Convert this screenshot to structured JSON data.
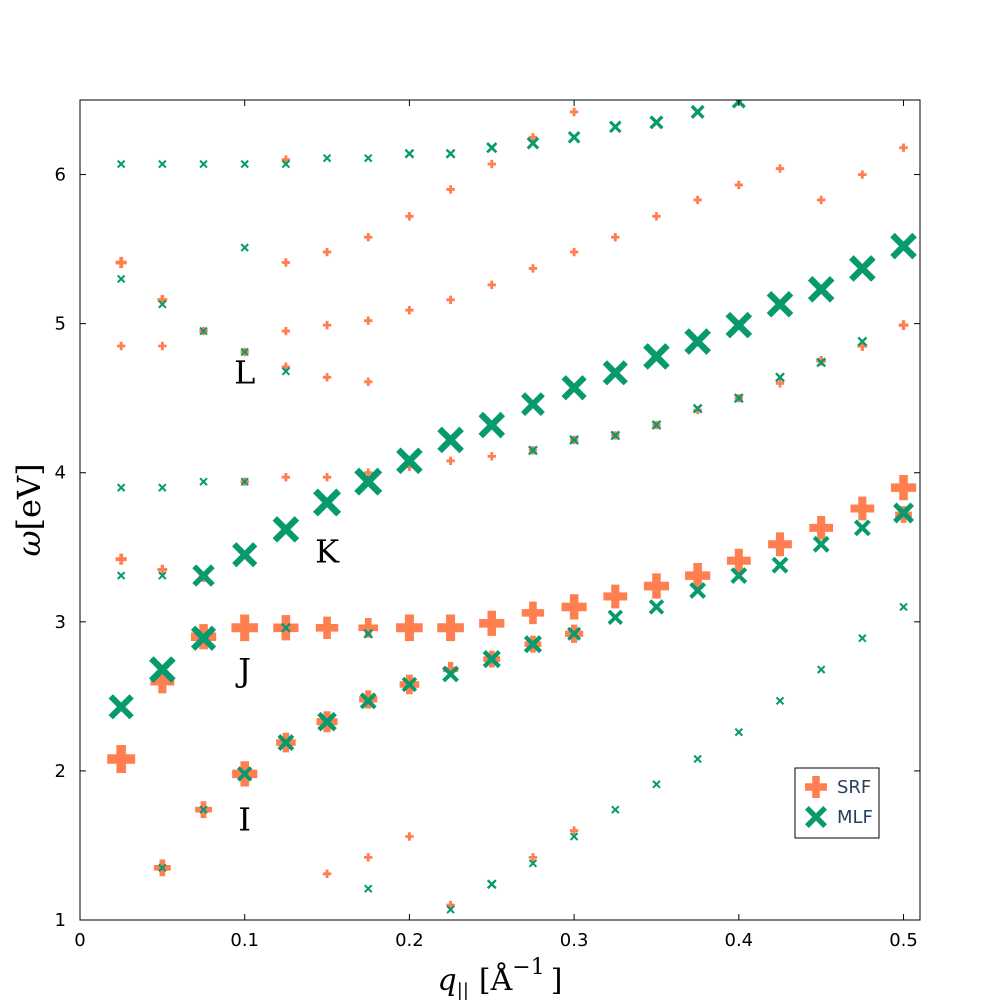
{
  "chart_data": {
    "type": "scatter",
    "title": "",
    "xlabel": "q",
    "xlabel_subscript": "||",
    "xlabel_unit": "[Å",
    "xlabel_unit_exp": "−1",
    "xlabel_unit_close": "]",
    "ylabel_symbol": "ω",
    "ylabel_unit": "[eV]",
    "xlim": [
      0,
      0.51
    ],
    "ylim": [
      1,
      6.5
    ],
    "xticks": [
      0,
      0.1,
      0.2,
      0.3,
      0.4,
      0.5
    ],
    "xtick_labels": [
      "0",
      "0.1",
      "0.2",
      "0.3",
      "0.4",
      "0.5"
    ],
    "yticks": [
      1,
      2,
      3,
      4,
      5,
      6
    ],
    "ytick_labels": [
      "1",
      "2",
      "3",
      "4",
      "5",
      "6"
    ],
    "grid": false,
    "legend_position": "bottom-right",
    "annotations": [
      {
        "text": "L",
        "x": 0.1,
        "y": 4.68
      },
      {
        "text": "K",
        "x": 0.15,
        "y": 3.48
      },
      {
        "text": "J",
        "x": 0.1,
        "y": 2.68
      },
      {
        "text": "I",
        "x": 0.1,
        "y": 1.68
      }
    ],
    "series": [
      {
        "name": "SRF",
        "marker": "cross",
        "color": "#FF7F50",
        "points": [
          {
            "x": 0.025,
            "y": 2.08,
            "s": 2.0
          },
          {
            "x": 0.05,
            "y": 2.6,
            "s": 1.7
          },
          {
            "x": 0.075,
            "y": 2.9,
            "s": 1.8
          },
          {
            "x": 0.1,
            "y": 2.96,
            "s": 1.9
          },
          {
            "x": 0.125,
            "y": 2.96,
            "s": 1.8
          },
          {
            "x": 0.15,
            "y": 2.96,
            "s": 1.6
          },
          {
            "x": 0.175,
            "y": 2.96,
            "s": 1.4
          },
          {
            "x": 0.2,
            "y": 2.96,
            "s": 1.9
          },
          {
            "x": 0.225,
            "y": 2.96,
            "s": 1.9
          },
          {
            "x": 0.25,
            "y": 2.99,
            "s": 1.8
          },
          {
            "x": 0.275,
            "y": 3.06,
            "s": 1.6
          },
          {
            "x": 0.3,
            "y": 3.1,
            "s": 1.8
          },
          {
            "x": 0.325,
            "y": 3.17,
            "s": 1.7
          },
          {
            "x": 0.35,
            "y": 3.24,
            "s": 1.8
          },
          {
            "x": 0.375,
            "y": 3.31,
            "s": 1.8
          },
          {
            "x": 0.4,
            "y": 3.41,
            "s": 1.7
          },
          {
            "x": 0.425,
            "y": 3.52,
            "s": 1.7
          },
          {
            "x": 0.45,
            "y": 3.63,
            "s": 1.7
          },
          {
            "x": 0.475,
            "y": 3.76,
            "s": 1.7
          },
          {
            "x": 0.5,
            "y": 3.9,
            "s": 1.8
          },
          {
            "x": 0.05,
            "y": 1.35,
            "s": 1.2
          },
          {
            "x": 0.075,
            "y": 1.74,
            "s": 1.2
          },
          {
            "x": 0.1,
            "y": 1.98,
            "s": 1.8
          },
          {
            "x": 0.125,
            "y": 2.19,
            "s": 1.4
          },
          {
            "x": 0.15,
            "y": 2.33,
            "s": 1.5
          },
          {
            "x": 0.175,
            "y": 2.48,
            "s": 1.3
          },
          {
            "x": 0.2,
            "y": 2.58,
            "s": 1.4
          },
          {
            "x": 0.225,
            "y": 2.68,
            "s": 1.1
          },
          {
            "x": 0.25,
            "y": 2.75,
            "s": 1.2
          },
          {
            "x": 0.275,
            "y": 2.85,
            "s": 1.2
          },
          {
            "x": 0.3,
            "y": 2.92,
            "s": 1.3
          },
          {
            "x": 0.5,
            "y": 3.72,
            "s": 1.2
          },
          {
            "x": 0.025,
            "y": 3.42,
            "s": 0.8
          },
          {
            "x": 0.05,
            "y": 3.35,
            "s": 0.7
          },
          {
            "x": 0.075,
            "y": 3.3,
            "s": 0.7
          },
          {
            "x": 0.025,
            "y": 4.85,
            "s": 0.6
          },
          {
            "x": 0.05,
            "y": 4.85,
            "s": 0.6
          },
          {
            "x": 0.075,
            "y": 4.95,
            "s": 0.6
          },
          {
            "x": 0.1,
            "y": 4.81,
            "s": 0.6
          },
          {
            "x": 0.125,
            "y": 4.71,
            "s": 0.6
          },
          {
            "x": 0.15,
            "y": 4.64,
            "s": 0.6
          },
          {
            "x": 0.175,
            "y": 4.61,
            "s": 0.6
          },
          {
            "x": 0.025,
            "y": 5.41,
            "s": 0.8
          },
          {
            "x": 0.05,
            "y": 5.16,
            "s": 0.7
          },
          {
            "x": 0.1,
            "y": 3.94,
            "s": 0.6
          },
          {
            "x": 0.125,
            "y": 3.97,
            "s": 0.6
          },
          {
            "x": 0.15,
            "y": 3.97,
            "s": 0.6
          },
          {
            "x": 0.175,
            "y": 4.0,
            "s": 0.6
          },
          {
            "x": 0.2,
            "y": 4.04,
            "s": 0.6
          },
          {
            "x": 0.225,
            "y": 4.08,
            "s": 0.6
          },
          {
            "x": 0.25,
            "y": 4.11,
            "s": 0.6
          },
          {
            "x": 0.275,
            "y": 4.15,
            "s": 0.6
          },
          {
            "x": 0.3,
            "y": 4.22,
            "s": 0.6
          },
          {
            "x": 0.325,
            "y": 4.25,
            "s": 0.6
          },
          {
            "x": 0.35,
            "y": 4.32,
            "s": 0.6
          },
          {
            "x": 0.375,
            "y": 4.42,
            "s": 0.6
          },
          {
            "x": 0.4,
            "y": 4.5,
            "s": 0.6
          },
          {
            "x": 0.425,
            "y": 4.6,
            "s": 0.6
          },
          {
            "x": 0.45,
            "y": 4.75,
            "s": 0.7
          },
          {
            "x": 0.475,
            "y": 4.85,
            "s": 0.7
          },
          {
            "x": 0.5,
            "y": 4.99,
            "s": 0.7
          },
          {
            "x": 0.125,
            "y": 4.95,
            "s": 0.6
          },
          {
            "x": 0.15,
            "y": 4.99,
            "s": 0.6
          },
          {
            "x": 0.175,
            "y": 5.02,
            "s": 0.6
          },
          {
            "x": 0.2,
            "y": 5.09,
            "s": 0.6
          },
          {
            "x": 0.225,
            "y": 5.16,
            "s": 0.6
          },
          {
            "x": 0.25,
            "y": 5.26,
            "s": 0.6
          },
          {
            "x": 0.275,
            "y": 5.37,
            "s": 0.6
          },
          {
            "x": 0.3,
            "y": 5.48,
            "s": 0.6
          },
          {
            "x": 0.325,
            "y": 5.58,
            "s": 0.6
          },
          {
            "x": 0.35,
            "y": 5.72,
            "s": 0.6
          },
          {
            "x": 0.375,
            "y": 5.83,
            "s": 0.6
          },
          {
            "x": 0.4,
            "y": 5.93,
            "s": 0.6
          },
          {
            "x": 0.425,
            "y": 6.04,
            "s": 0.6
          },
          {
            "x": 0.45,
            "y": 5.83,
            "s": 0.6
          },
          {
            "x": 0.475,
            "y": 6.0,
            "s": 0.6
          },
          {
            "x": 0.5,
            "y": 6.18,
            "s": 0.6
          },
          {
            "x": 0.125,
            "y": 5.41,
            "s": 0.6
          },
          {
            "x": 0.15,
            "y": 5.48,
            "s": 0.6
          },
          {
            "x": 0.175,
            "y": 5.58,
            "s": 0.6
          },
          {
            "x": 0.2,
            "y": 5.72,
            "s": 0.6
          },
          {
            "x": 0.225,
            "y": 5.9,
            "s": 0.6
          },
          {
            "x": 0.25,
            "y": 6.07,
            "s": 0.6
          },
          {
            "x": 0.275,
            "y": 6.25,
            "s": 0.6
          },
          {
            "x": 0.3,
            "y": 6.42,
            "s": 0.6
          },
          {
            "x": 0.125,
            "y": 6.1,
            "s": 0.6
          },
          {
            "x": 0.15,
            "y": 1.31,
            "s": 0.6
          },
          {
            "x": 0.175,
            "y": 1.42,
            "s": 0.6
          },
          {
            "x": 0.2,
            "y": 1.56,
            "s": 0.6
          },
          {
            "x": 0.225,
            "y": 1.1,
            "s": 0.6
          },
          {
            "x": 0.275,
            "y": 1.42,
            "s": 0.6
          },
          {
            "x": 0.3,
            "y": 1.6,
            "s": 0.6
          }
        ]
      },
      {
        "name": "MLF",
        "marker": "x",
        "color": "#079A6D",
        "points": [
          {
            "x": 0.025,
            "y": 2.43,
            "s": 1.8
          },
          {
            "x": 0.05,
            "y": 2.68,
            "s": 1.9
          },
          {
            "x": 0.075,
            "y": 2.89,
            "s": 1.8
          },
          {
            "x": 0.075,
            "y": 3.31,
            "s": 1.6
          },
          {
            "x": 0.1,
            "y": 3.45,
            "s": 1.8
          },
          {
            "x": 0.125,
            "y": 3.62,
            "s": 1.9
          },
          {
            "x": 0.15,
            "y": 3.8,
            "s": 2.0
          },
          {
            "x": 0.175,
            "y": 3.94,
            "s": 2.0
          },
          {
            "x": 0.2,
            "y": 4.08,
            "s": 1.9
          },
          {
            "x": 0.225,
            "y": 4.22,
            "s": 1.9
          },
          {
            "x": 0.25,
            "y": 4.32,
            "s": 1.9
          },
          {
            "x": 0.275,
            "y": 4.46,
            "s": 1.7
          },
          {
            "x": 0.3,
            "y": 4.57,
            "s": 1.8
          },
          {
            "x": 0.325,
            "y": 4.67,
            "s": 1.8
          },
          {
            "x": 0.35,
            "y": 4.78,
            "s": 1.9
          },
          {
            "x": 0.375,
            "y": 4.88,
            "s": 1.9
          },
          {
            "x": 0.4,
            "y": 4.99,
            "s": 1.9
          },
          {
            "x": 0.425,
            "y": 5.13,
            "s": 1.9
          },
          {
            "x": 0.45,
            "y": 5.23,
            "s": 1.9
          },
          {
            "x": 0.475,
            "y": 5.37,
            "s": 1.9
          },
          {
            "x": 0.5,
            "y": 5.52,
            "s": 1.9
          },
          {
            "x": 0.1,
            "y": 1.98,
            "s": 1.1
          },
          {
            "x": 0.125,
            "y": 2.19,
            "s": 1.2
          },
          {
            "x": 0.15,
            "y": 2.33,
            "s": 1.4
          },
          {
            "x": 0.175,
            "y": 2.47,
            "s": 1.2
          },
          {
            "x": 0.2,
            "y": 2.58,
            "s": 1.1
          },
          {
            "x": 0.225,
            "y": 2.65,
            "s": 1.2
          },
          {
            "x": 0.25,
            "y": 2.75,
            "s": 1.3
          },
          {
            "x": 0.275,
            "y": 2.85,
            "s": 1.3
          },
          {
            "x": 0.3,
            "y": 2.92,
            "s": 1.0
          },
          {
            "x": 0.325,
            "y": 3.03,
            "s": 1.1
          },
          {
            "x": 0.35,
            "y": 3.1,
            "s": 1.1
          },
          {
            "x": 0.375,
            "y": 3.21,
            "s": 1.2
          },
          {
            "x": 0.4,
            "y": 3.31,
            "s": 1.2
          },
          {
            "x": 0.425,
            "y": 3.38,
            "s": 1.2
          },
          {
            "x": 0.45,
            "y": 3.52,
            "s": 1.2
          },
          {
            "x": 0.475,
            "y": 3.63,
            "s": 1.2
          },
          {
            "x": 0.5,
            "y": 3.73,
            "s": 1.5
          },
          {
            "x": 0.125,
            "y": 2.96,
            "s": 0.7
          },
          {
            "x": 0.175,
            "y": 2.92,
            "s": 0.7
          },
          {
            "x": 0.025,
            "y": 3.31,
            "s": 0.6
          },
          {
            "x": 0.05,
            "y": 3.31,
            "s": 0.6
          },
          {
            "x": 0.025,
            "y": 3.9,
            "s": 0.6
          },
          {
            "x": 0.05,
            "y": 3.9,
            "s": 0.6
          },
          {
            "x": 0.075,
            "y": 3.94,
            "s": 0.6
          },
          {
            "x": 0.1,
            "y": 3.94,
            "s": 0.6
          },
          {
            "x": 0.275,
            "y": 4.15,
            "s": 0.7
          },
          {
            "x": 0.3,
            "y": 4.22,
            "s": 0.7
          },
          {
            "x": 0.325,
            "y": 4.25,
            "s": 0.7
          },
          {
            "x": 0.35,
            "y": 4.32,
            "s": 0.7
          },
          {
            "x": 0.375,
            "y": 4.43,
            "s": 0.7
          },
          {
            "x": 0.4,
            "y": 4.5,
            "s": 0.7
          },
          {
            "x": 0.425,
            "y": 4.64,
            "s": 0.7
          },
          {
            "x": 0.45,
            "y": 4.74,
            "s": 0.7
          },
          {
            "x": 0.475,
            "y": 4.88,
            "s": 0.7
          },
          {
            "x": 0.025,
            "y": 5.3,
            "s": 0.6
          },
          {
            "x": 0.05,
            "y": 5.13,
            "s": 0.6
          },
          {
            "x": 0.075,
            "y": 4.95,
            "s": 0.6
          },
          {
            "x": 0.1,
            "y": 4.81,
            "s": 0.6
          },
          {
            "x": 0.125,
            "y": 4.68,
            "s": 0.6
          },
          {
            "x": 0.1,
            "y": 5.51,
            "s": 0.6
          },
          {
            "x": 0.025,
            "y": 6.07,
            "s": 0.6
          },
          {
            "x": 0.05,
            "y": 6.07,
            "s": 0.6
          },
          {
            "x": 0.075,
            "y": 6.07,
            "s": 0.6
          },
          {
            "x": 0.1,
            "y": 6.07,
            "s": 0.6
          },
          {
            "x": 0.125,
            "y": 6.07,
            "s": 0.6
          },
          {
            "x": 0.15,
            "y": 6.11,
            "s": 0.6
          },
          {
            "x": 0.175,
            "y": 6.11,
            "s": 0.6
          },
          {
            "x": 0.2,
            "y": 6.14,
            "s": 0.7
          },
          {
            "x": 0.225,
            "y": 6.14,
            "s": 0.7
          },
          {
            "x": 0.25,
            "y": 6.18,
            "s": 0.8
          },
          {
            "x": 0.275,
            "y": 6.21,
            "s": 0.9
          },
          {
            "x": 0.3,
            "y": 6.25,
            "s": 0.9
          },
          {
            "x": 0.325,
            "y": 6.32,
            "s": 0.9
          },
          {
            "x": 0.35,
            "y": 6.35,
            "s": 1.0
          },
          {
            "x": 0.375,
            "y": 6.42,
            "s": 1.0
          },
          {
            "x": 0.4,
            "y": 6.49,
            "s": 1.0
          },
          {
            "x": 0.5,
            "y": 3.1,
            "s": 0.6
          },
          {
            "x": 0.475,
            "y": 2.89,
            "s": 0.6
          },
          {
            "x": 0.45,
            "y": 2.68,
            "s": 0.6
          },
          {
            "x": 0.425,
            "y": 2.47,
            "s": 0.6
          },
          {
            "x": 0.4,
            "y": 2.26,
            "s": 0.6
          },
          {
            "x": 0.375,
            "y": 2.08,
            "s": 0.6
          },
          {
            "x": 0.35,
            "y": 1.91,
            "s": 0.6
          },
          {
            "x": 0.325,
            "y": 1.74,
            "s": 0.6
          },
          {
            "x": 0.3,
            "y": 1.56,
            "s": 0.6
          },
          {
            "x": 0.275,
            "y": 1.38,
            "s": 0.6
          },
          {
            "x": 0.25,
            "y": 1.24,
            "s": 0.7
          },
          {
            "x": 0.225,
            "y": 1.07,
            "s": 0.6
          },
          {
            "x": 0.175,
            "y": 1.21,
            "s": 0.6
          },
          {
            "x": 0.05,
            "y": 1.35,
            "s": 0.6
          },
          {
            "x": 0.075,
            "y": 1.74,
            "s": 0.6
          }
        ]
      }
    ]
  }
}
